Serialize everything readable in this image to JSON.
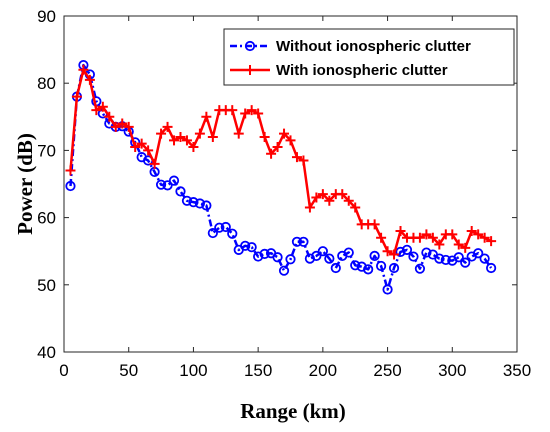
{
  "chart_data": {
    "type": "line",
    "xlabel": "Range (km)",
    "ylabel": "Power (dB)",
    "xlim": [
      0,
      350
    ],
    "ylim": [
      40,
      90
    ],
    "xticks": [
      0,
      50,
      100,
      150,
      200,
      250,
      300,
      350
    ],
    "yticks": [
      40,
      50,
      60,
      70,
      80,
      90
    ],
    "grid": false,
    "legend_position": "top-right",
    "series": [
      {
        "name": "Without ionospheric clutter",
        "color": "#0000ff",
        "marker": "circle",
        "line_style": "dash-dot",
        "x": [
          5,
          10,
          15,
          20,
          25,
          30,
          35,
          40,
          45,
          50,
          55,
          60,
          65,
          70,
          75,
          80,
          85,
          90,
          95,
          100,
          105,
          110,
          115,
          120,
          125,
          130,
          135,
          140,
          145,
          150,
          155,
          160,
          165,
          170,
          175,
          180,
          185,
          190,
          195,
          200,
          205,
          210,
          215,
          220,
          225,
          230,
          235,
          240,
          245,
          250,
          255,
          260,
          265,
          270,
          275,
          280,
          285,
          290,
          295,
          300,
          305,
          310,
          315,
          320,
          325,
          330
        ],
        "y": [
          64.7,
          78,
          82.7,
          81.3,
          77.3,
          75.5,
          74,
          73.5,
          73.6,
          72.8,
          71.2,
          69,
          68.5,
          66.8,
          64.9,
          64.8,
          65.5,
          63.9,
          62.5,
          62.3,
          62.1,
          61.8,
          57.7,
          58.5,
          58.6,
          57.6,
          55.2,
          55.8,
          55.6,
          54.2,
          54.6,
          54.7,
          54.1,
          52.1,
          53.8,
          56.4,
          56.4,
          53.9,
          54.3,
          55,
          53.9,
          52.5,
          54.3,
          54.8,
          52.9,
          52.7,
          52.3,
          54.3,
          52.8,
          49.3,
          52.5,
          54.9,
          55.2,
          54.2,
          52.4,
          54.8,
          54.5,
          53.9,
          53.7,
          53.6,
          54.1,
          53.3,
          54.2,
          54.7,
          53.9,
          52.5
        ]
      },
      {
        "name": "With ionospheric clutter",
        "color": "#ff0000",
        "marker": "plus",
        "line_style": "solid",
        "x": [
          5,
          10,
          15,
          20,
          25,
          30,
          35,
          40,
          45,
          50,
          55,
          60,
          65,
          70,
          75,
          80,
          85,
          90,
          95,
          100,
          105,
          110,
          115,
          120,
          125,
          130,
          135,
          140,
          145,
          150,
          155,
          160,
          165,
          170,
          175,
          180,
          185,
          190,
          195,
          200,
          205,
          210,
          215,
          220,
          225,
          230,
          235,
          240,
          245,
          250,
          255,
          260,
          265,
          270,
          275,
          280,
          285,
          290,
          295,
          300,
          305,
          310,
          315,
          320,
          325,
          330
        ],
        "y": [
          67,
          78,
          82,
          80.5,
          76,
          76.5,
          75,
          73.5,
          74,
          73.5,
          70.5,
          71,
          70,
          68,
          72.5,
          73.5,
          71.5,
          72,
          71.5,
          70.5,
          72.5,
          75,
          72,
          76,
          76,
          76,
          72.5,
          75.5,
          76,
          75.5,
          72,
          69.5,
          70.5,
          72.5,
          71.5,
          69,
          68.5,
          61.5,
          63,
          63.5,
          62.5,
          63.5,
          63.5,
          62.5,
          61.5,
          59,
          59,
          59,
          57,
          55,
          54.5,
          58,
          57,
          57,
          57,
          57.5,
          57,
          56,
          57.5,
          57.5,
          56,
          55.5,
          58,
          57.5,
          57,
          56.5
        ]
      }
    ]
  }
}
